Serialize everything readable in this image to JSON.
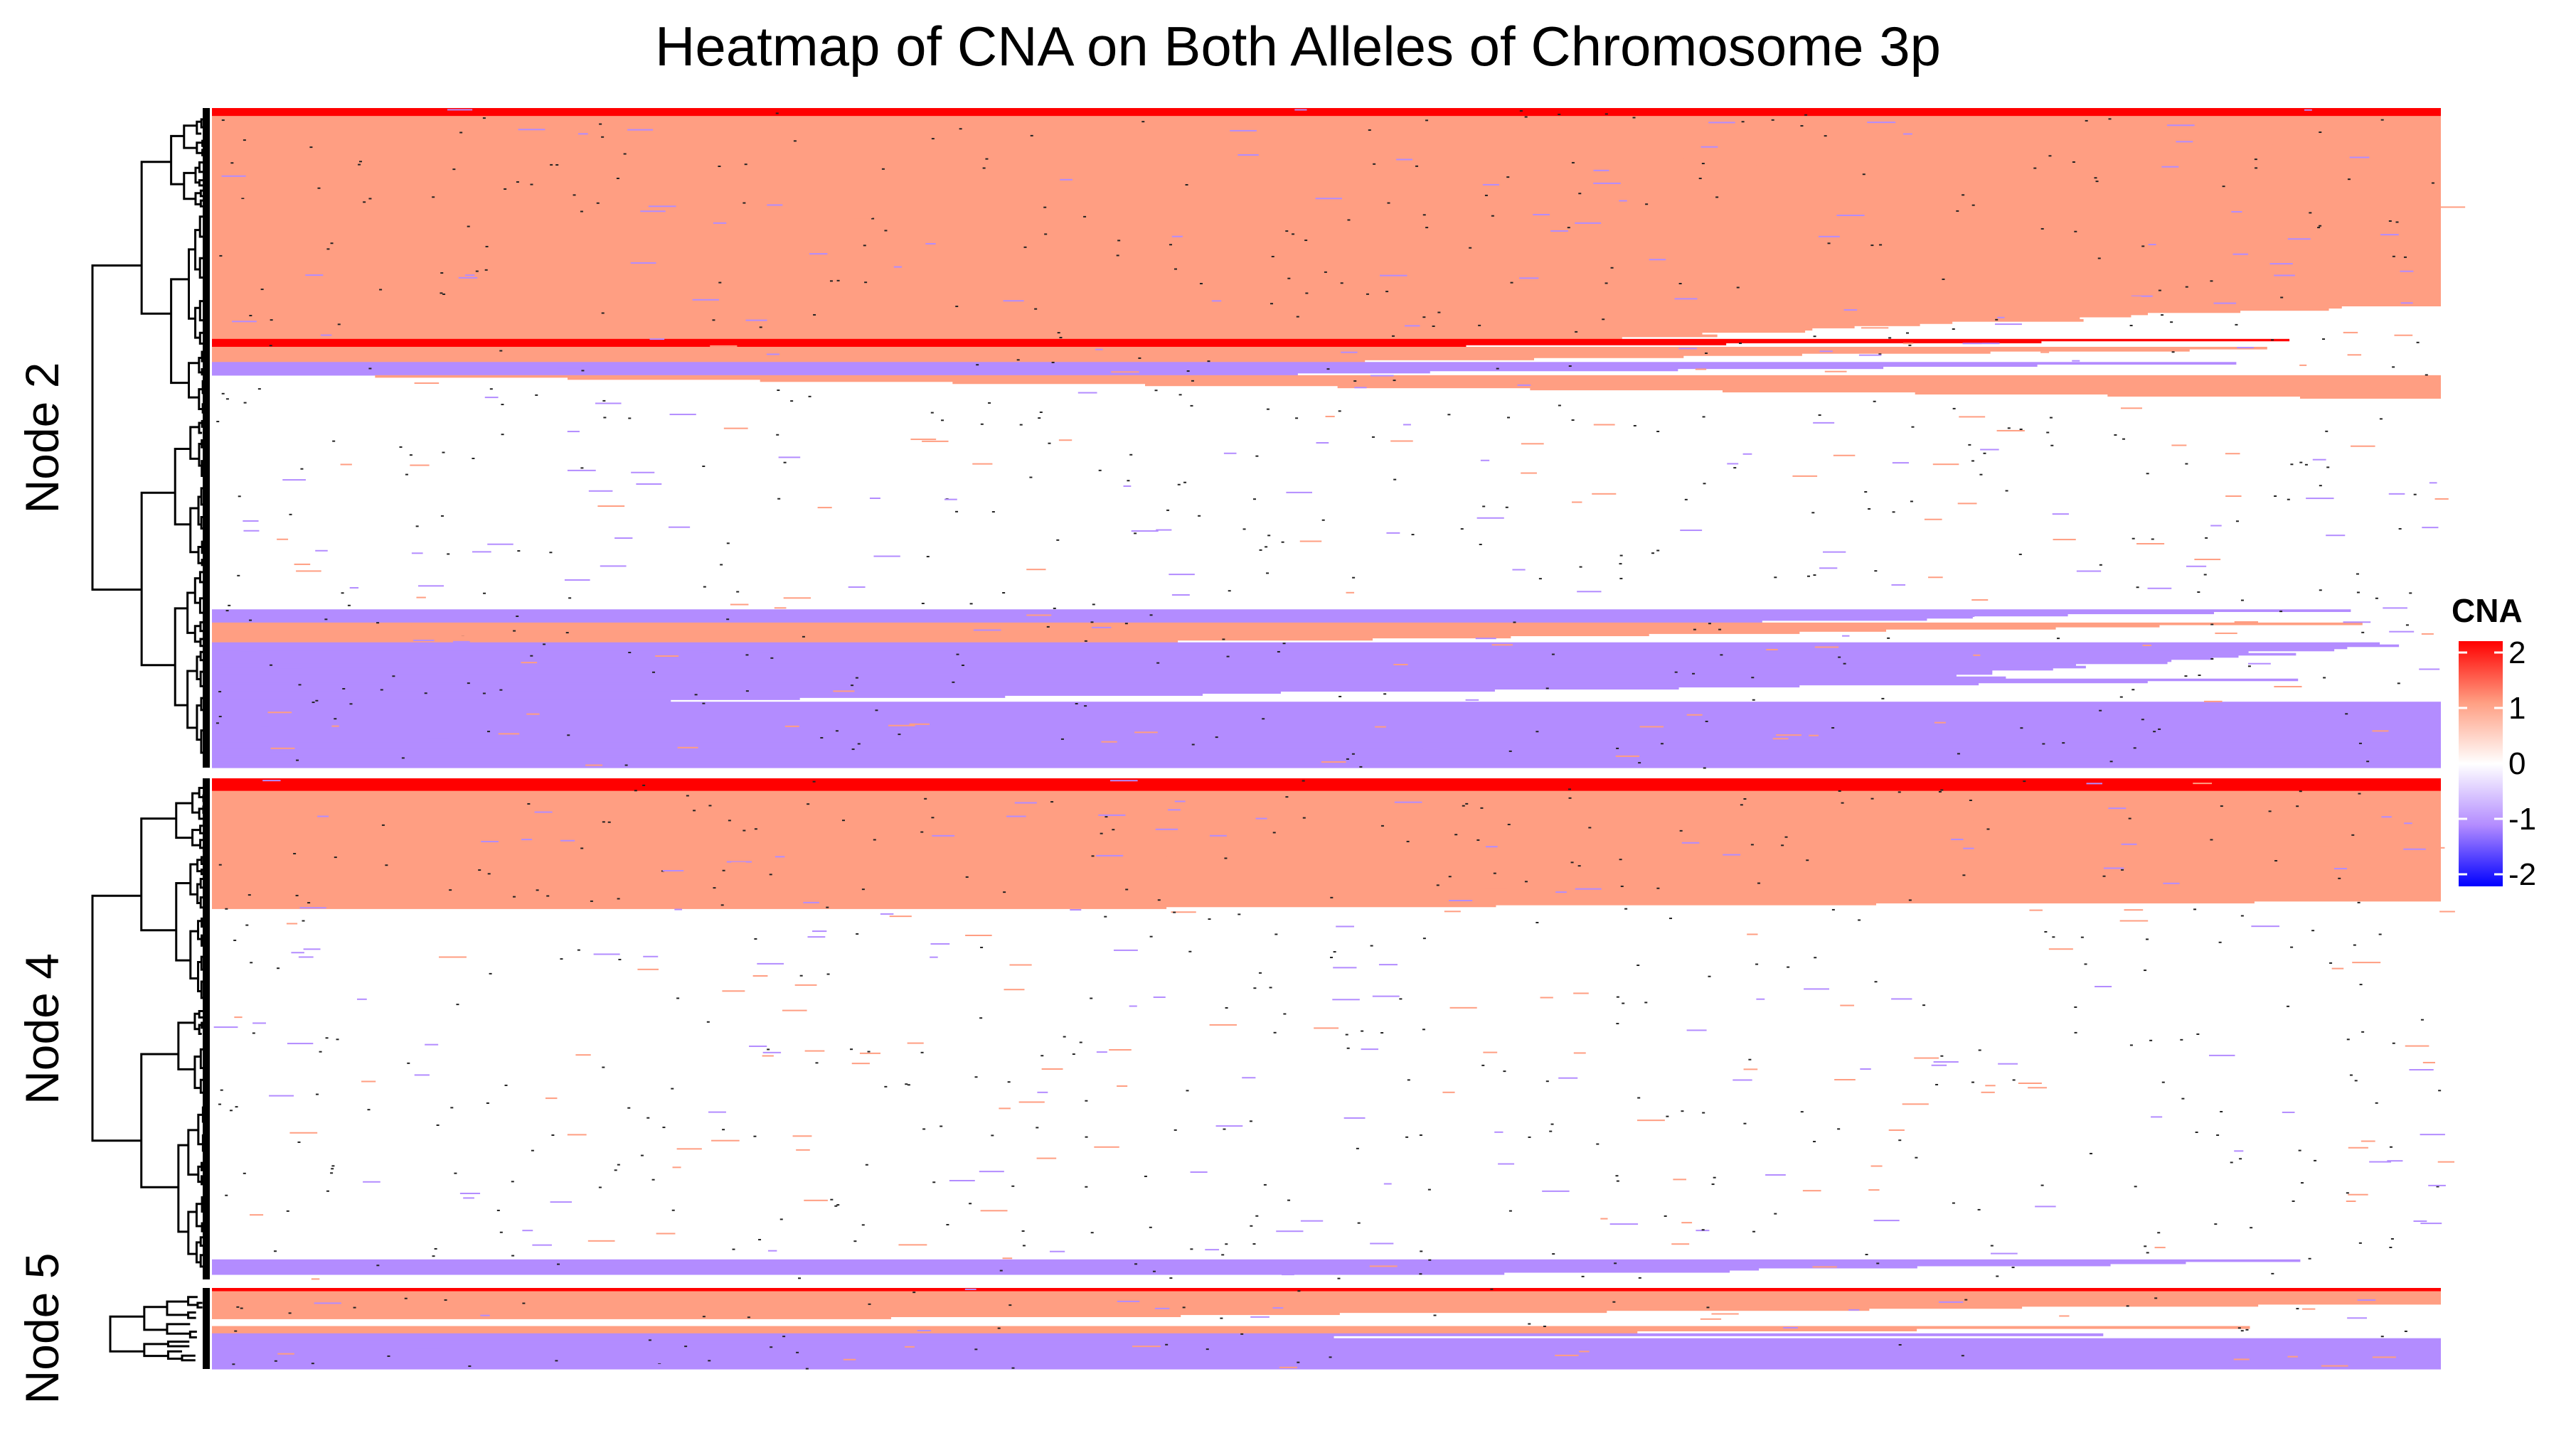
{
  "chart_data": {
    "type": "heatmap",
    "title": "Heatmap of CNA on Both Alleles of Chromosome 3p",
    "value_range": [
      -2,
      2
    ],
    "colors": {
      "2": "#ff0000",
      "1": "#ff9e82",
      "0": "#ffffff",
      "-1": "#b38cff",
      "-2": "#0000ff",
      "dendrogram": "#000000"
    },
    "legend": {
      "title": "CNA",
      "ticks": [
        "2",
        "1",
        "0",
        "-1",
        "-2"
      ],
      "placement": "right"
    },
    "row_groups": [
      {
        "name": "Node 2",
        "rows": 900,
        "bands": [
          {
            "from": 0.0,
            "to": 0.012,
            "value": 2,
            "taper": 0
          },
          {
            "from": 0.012,
            "to": 0.3,
            "value": 1,
            "taper": 0
          },
          {
            "from": 0.3,
            "to": 0.35,
            "value": 1,
            "taper": 0.35
          },
          {
            "from": 0.35,
            "to": 0.362,
            "value": 2,
            "taper": 0.45
          },
          {
            "from": 0.362,
            "to": 0.385,
            "value": 1,
            "taper": 0.5
          },
          {
            "from": 0.385,
            "to": 0.405,
            "value": -1,
            "taper": 0.55
          },
          {
            "from": 0.405,
            "to": 0.44,
            "value": 1,
            "taper": 0.95
          },
          {
            "from": 0.76,
            "to": 0.78,
            "value": -1,
            "taper": 0.3
          },
          {
            "from": 0.78,
            "to": 0.81,
            "value": 1,
            "taper": 0.55
          },
          {
            "from": 0.81,
            "to": 0.865,
            "value": -1,
            "taper": 0.2
          },
          {
            "from": 0.865,
            "to": 0.9,
            "value": -1,
            "taper": 0.8
          },
          {
            "from": 0.9,
            "to": 1.0,
            "value": -1,
            "taper": 0
          }
        ]
      },
      {
        "name": "Node 4",
        "rows": 700,
        "bands": [
          {
            "from": 0.0,
            "to": 0.025,
            "value": 2,
            "taper": 0
          },
          {
            "from": 0.025,
            "to": 0.245,
            "value": 1,
            "taper": 0
          },
          {
            "from": 0.245,
            "to": 0.26,
            "value": 1,
            "taper": 0.6
          },
          {
            "from": 0.96,
            "to": 0.99,
            "value": -1,
            "taper": 0.4
          }
        ]
      },
      {
        "name": "Node 5",
        "rows": 120,
        "bands": [
          {
            "from": 0.0,
            "to": 0.04,
            "value": 2,
            "taper": 0
          },
          {
            "from": 0.04,
            "to": 0.2,
            "value": 1,
            "taper": 0
          },
          {
            "from": 0.2,
            "to": 0.38,
            "value": 1,
            "taper": 0.7
          },
          {
            "from": 0.38,
            "to": 0.47,
            "value": 0,
            "taper": 0
          },
          {
            "from": 0.47,
            "to": 0.56,
            "value": 1,
            "taper": 0.4
          },
          {
            "from": 0.56,
            "to": 0.62,
            "value": -1,
            "taper": 0.6
          },
          {
            "from": 0.62,
            "to": 1.0,
            "value": -1,
            "taper": 0
          }
        ]
      }
    ],
    "xlabel": "",
    "ylabel": "",
    "grid": false
  }
}
